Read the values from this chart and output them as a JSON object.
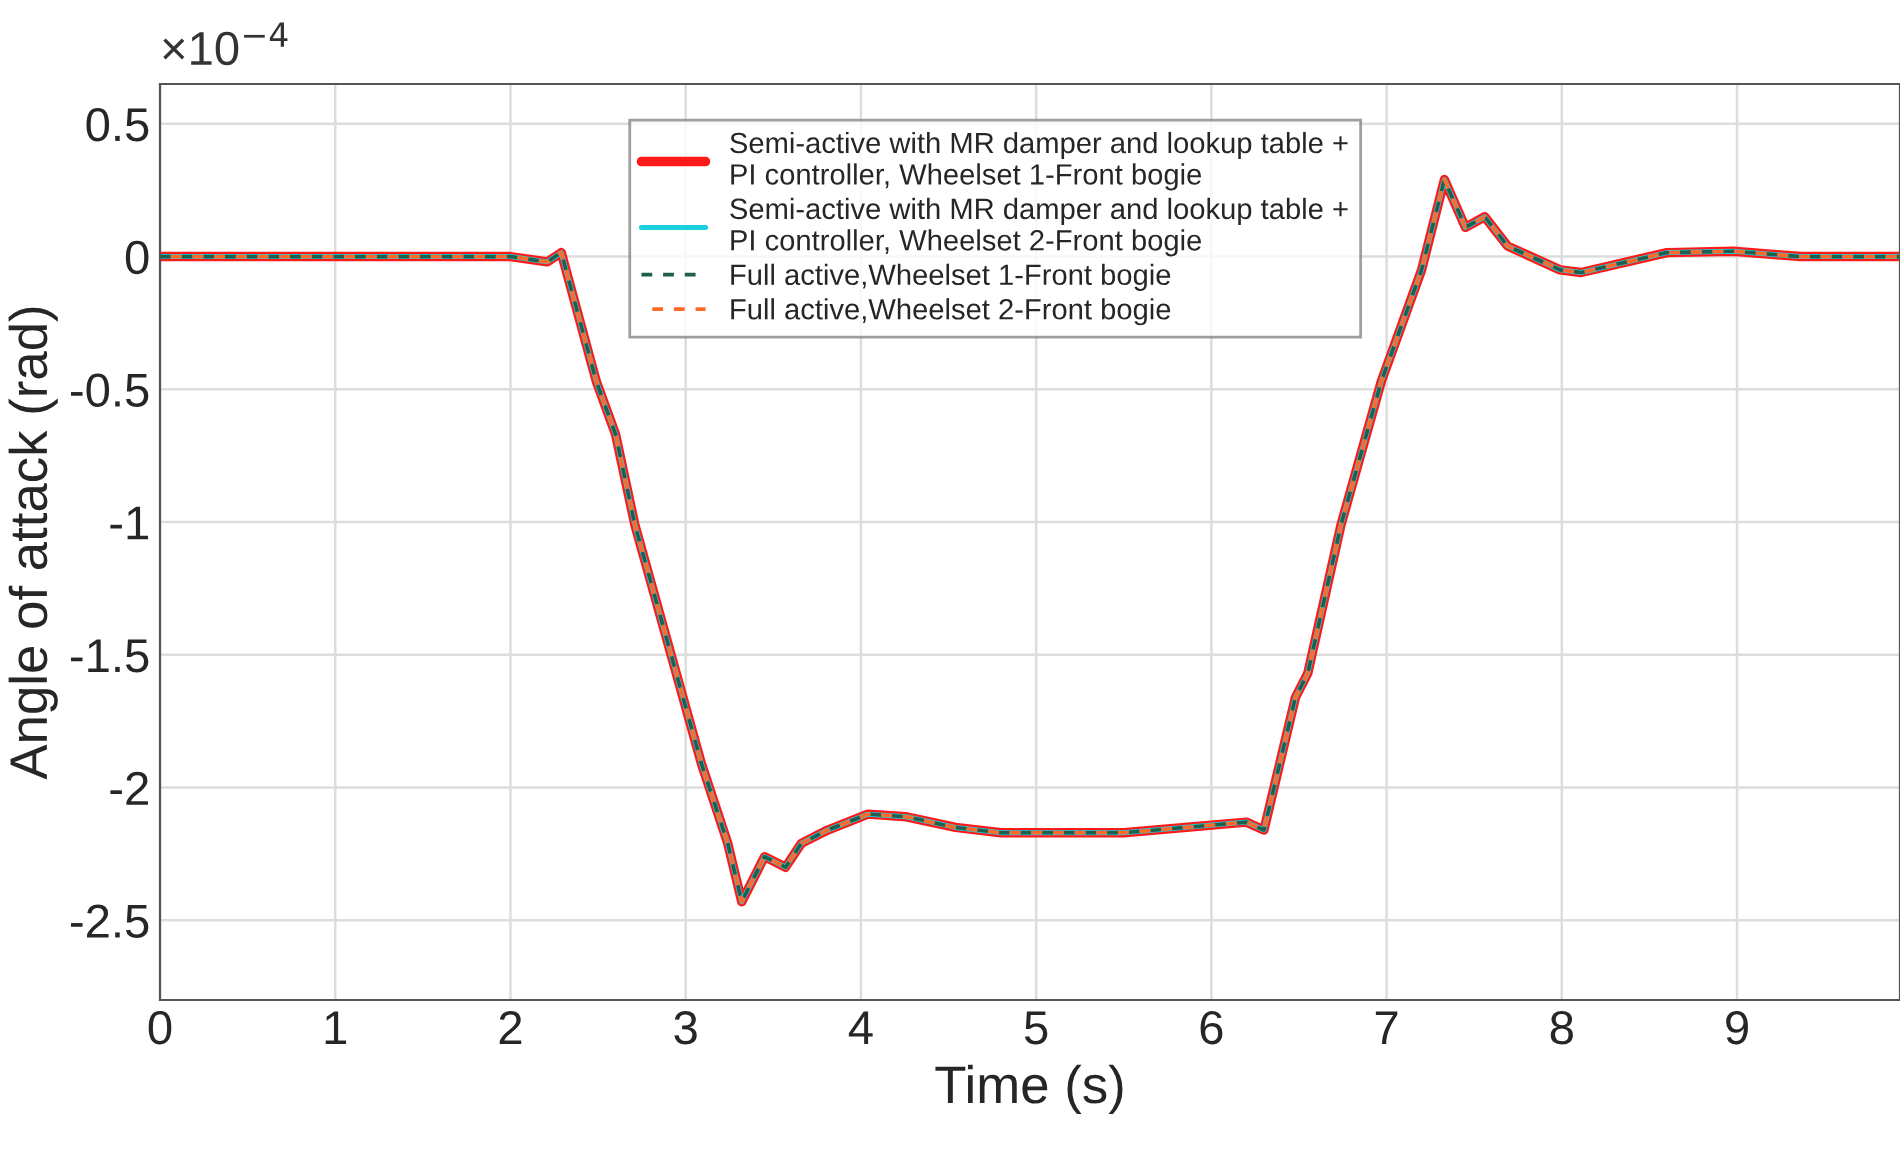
{
  "chart_data": {
    "type": "line",
    "xlabel": "Time (s)",
    "ylabel": "Angle of attack (rad)",
    "annotations": [
      "×10$^{−4}$"
    ],
    "x": [
      0,
      1,
      2,
      2.21,
      2.29,
      2.49,
      2.6,
      2.71,
      2.9,
      3.09,
      3.24,
      3.32,
      3.45,
      3.57,
      3.66,
      3.81,
      4.04,
      4.26,
      4.54,
      4.8,
      5.5,
      6.2,
      6.3,
      6.48,
      6.55,
      6.74,
      6.97,
      7.2,
      7.33,
      7.45,
      7.56,
      7.69,
      7.99,
      8.11,
      8.6,
      8.98,
      9.36,
      9.93
    ],
    "series": [
      {
        "name": "Semi-active with MR damper and lookup table +\nPI controller, Wheelset 1-Front bogie",
        "color": "#ff1a1a",
        "line_style": "solid",
        "values": [
          0,
          0,
          0,
          -0.02,
          0.015,
          -0.47,
          -0.67,
          -1.01,
          -1.46,
          -1.91,
          -2.21,
          -2.43,
          -2.26,
          -2.3,
          -2.21,
          -2.16,
          -2.1,
          -2.11,
          -2.15,
          -2.17,
          -2.17,
          -2.13,
          -2.16,
          -1.66,
          -1.57,
          -1.01,
          -0.47,
          -0.05,
          0.29,
          0.11,
          0.15,
          0.04,
          -0.05,
          -0.06,
          0.015,
          0.02,
          0,
          0
        ]
      },
      {
        "name": "Semi-active with MR damper and lookup table +\nPI controller, Wheelset 2-Front bogie",
        "color": "#1ad0dc",
        "line_style": "solid",
        "values": [
          0,
          0,
          0,
          -0.02,
          0.015,
          -0.47,
          -0.67,
          -1.01,
          -1.46,
          -1.91,
          -2.21,
          -2.43,
          -2.26,
          -2.3,
          -2.21,
          -2.16,
          -2.1,
          -2.11,
          -2.15,
          -2.17,
          -2.17,
          -2.13,
          -2.16,
          -1.66,
          -1.57,
          -1.01,
          -0.47,
          -0.05,
          0.29,
          0.11,
          0.15,
          0.04,
          -0.05,
          -0.06,
          0.015,
          0.02,
          0,
          0
        ]
      },
      {
        "name": "Full active,Wheelset 1-Front bogie",
        "color": "#1f5f50",
        "line_style": "dashed",
        "values": [
          0,
          0,
          0,
          -0.02,
          0.015,
          -0.47,
          -0.67,
          -1.01,
          -1.46,
          -1.91,
          -2.21,
          -2.43,
          -2.26,
          -2.3,
          -2.21,
          -2.16,
          -2.1,
          -2.11,
          -2.15,
          -2.17,
          -2.17,
          -2.13,
          -2.16,
          -1.66,
          -1.57,
          -1.01,
          -0.47,
          -0.05,
          0.29,
          0.11,
          0.15,
          0.04,
          -0.05,
          -0.06,
          0.015,
          0.02,
          0,
          0
        ]
      },
      {
        "name": "Full active,Wheelset 2-Front bogie",
        "color": "#ff6a2a",
        "line_style": "dashed",
        "values": [
          0,
          0,
          0,
          -0.02,
          0.015,
          -0.47,
          -0.67,
          -1.01,
          -1.46,
          -1.91,
          -2.21,
          -2.43,
          -2.26,
          -2.3,
          -2.21,
          -2.16,
          -2.1,
          -2.11,
          -2.15,
          -2.17,
          -2.17,
          -2.13,
          -2.16,
          -1.66,
          -1.57,
          -1.01,
          -0.47,
          -0.05,
          0.29,
          0.11,
          0.15,
          0.04,
          -0.05,
          -0.06,
          0.015,
          0.02,
          0,
          0
        ]
      }
    ],
    "xlim": [
      0,
      9.93
    ],
    "xticks": [
      0,
      1,
      2,
      3,
      4,
      5,
      6,
      7,
      8,
      9
    ],
    "ylim": [
      -2.8,
      0.65
    ],
    "yticks": [
      -2.5,
      -2,
      -1.5,
      -1,
      -0.5,
      0,
      0.5
    ],
    "grid": true,
    "legend": "top",
    "marker": "none"
  }
}
